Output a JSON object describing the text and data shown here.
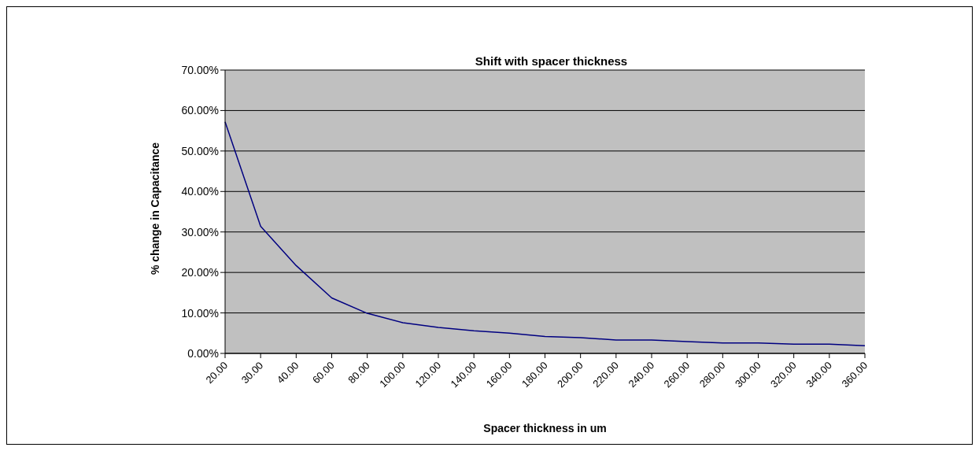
{
  "chart_data": {
    "type": "line",
    "title": "Shift with spacer thickness",
    "xlabel": "Spacer thickness in um",
    "ylabel": "% change in Capacitance",
    "categories": [
      "20.00",
      "30.00",
      "40.00",
      "60.00",
      "80.00",
      "100.00",
      "120.00",
      "140.00",
      "160.00",
      "180.00",
      "200.00",
      "220.00",
      "240.00",
      "260.00",
      "280.00",
      "300.00",
      "320.00",
      "340.00",
      "360.00"
    ],
    "series": [
      {
        "color": "#000080",
        "values": [
          57.2,
          31.4,
          21.7,
          13.7,
          9.9,
          7.6,
          6.4,
          5.6,
          5.0,
          4.2,
          3.9,
          3.3,
          3.3,
          2.9,
          2.6,
          2.6,
          2.3,
          2.3,
          1.9
        ]
      }
    ],
    "ylim": [
      0,
      70
    ],
    "yticks": [
      {
        "value": 0,
        "label": "0.00%"
      },
      {
        "value": 10,
        "label": "10.00%"
      },
      {
        "value": 20,
        "label": "20.00%"
      },
      {
        "value": 30,
        "label": "30.00%"
      },
      {
        "value": 40,
        "label": "40.00%"
      },
      {
        "value": 50,
        "label": "50.00%"
      },
      {
        "value": 60,
        "label": "60.00%"
      },
      {
        "value": 70,
        "label": "70.00%"
      }
    ],
    "grid": "y",
    "legend": false,
    "marker": "none",
    "line_style": "solid"
  }
}
